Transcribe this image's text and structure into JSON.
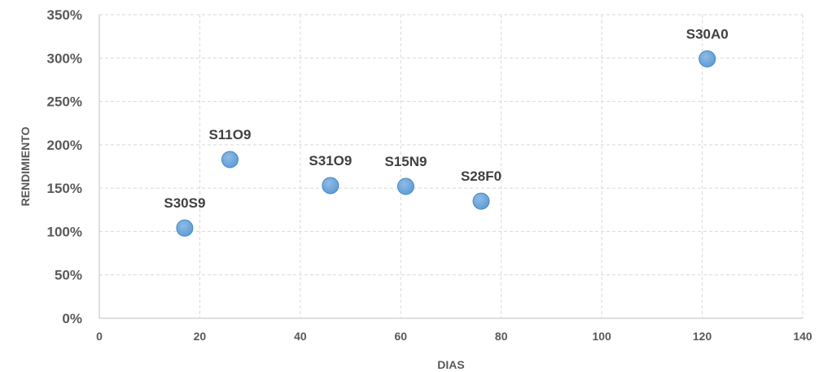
{
  "chart_data": {
    "type": "scatter",
    "title": "",
    "xlabel": "DIAS",
    "ylabel": "RENDIMIENTO",
    "xlim": [
      0,
      140
    ],
    "ylim": [
      0,
      3.5
    ],
    "x_ticks": [
      0,
      20,
      40,
      60,
      80,
      100,
      120,
      140
    ],
    "y_ticks": [
      0,
      0.5,
      1.0,
      1.5,
      2.0,
      2.5,
      3.0,
      3.5
    ],
    "x_tick_labels": [
      "0",
      "20",
      "40",
      "60",
      "80",
      "100",
      "120",
      "140"
    ],
    "y_tick_labels": [
      "0%",
      "50%",
      "100%",
      "150%",
      "200%",
      "250%",
      "300%",
      "350%"
    ],
    "grid": true,
    "legend": "none",
    "marker_color": "#5b9bd5",
    "points": [
      {
        "label": "S30S9",
        "x": 17,
        "y": 1.04
      },
      {
        "label": "S11O9",
        "x": 26,
        "y": 1.83
      },
      {
        "label": "S31O9",
        "x": 46,
        "y": 1.53
      },
      {
        "label": "S15N9",
        "x": 61,
        "y": 1.52
      },
      {
        "label": "S28F0",
        "x": 76,
        "y": 1.35
      },
      {
        "label": "S30A0",
        "x": 121,
        "y": 2.99
      }
    ]
  }
}
